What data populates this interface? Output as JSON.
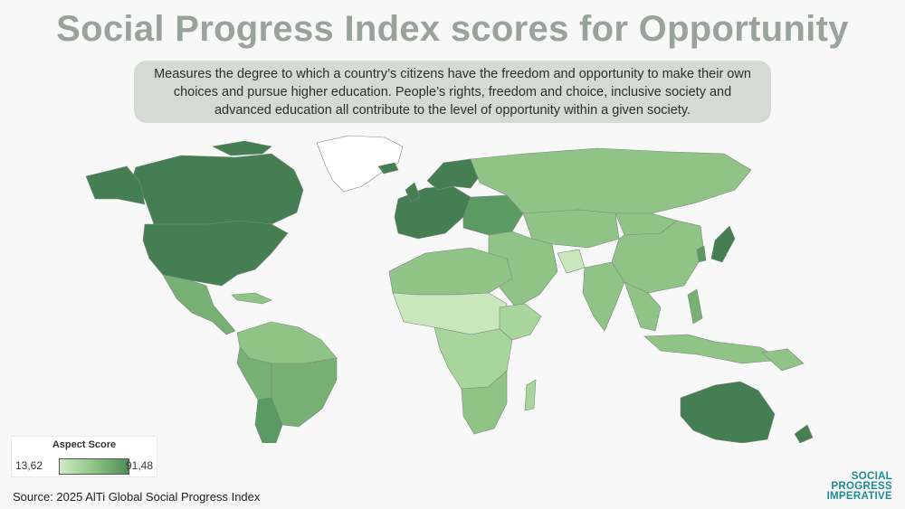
{
  "title": "Social Progress Index scores for Opportunity",
  "subtitle": "Measures the degree to which a country’s citizens have the freedom and opportunity to make their own choices and pursue higher education. People’s rights, freedom and choice, inclusive society and advanced education all contribute to the level of opportunity within a given society.",
  "legend": {
    "title": "Aspect Score",
    "min": "13,62",
    "max": "91,48",
    "colors": [
      "#d2ebc6",
      "#8dc384",
      "#4f8e5a"
    ]
  },
  "source": "Source: 2025 AlTi Global Social Progress Index",
  "logo": {
    "line1": "SOCIAL",
    "line2": "PROGRESS",
    "line3": "IMPERATIVE"
  },
  "colors": {
    "no_data": "#ffffff",
    "very_low": "#c9e6bc",
    "low": "#a8d59b",
    "mid": "#8fc486",
    "mid_high": "#76b173",
    "high": "#5b9a62",
    "very_high": "#447e52"
  }
}
